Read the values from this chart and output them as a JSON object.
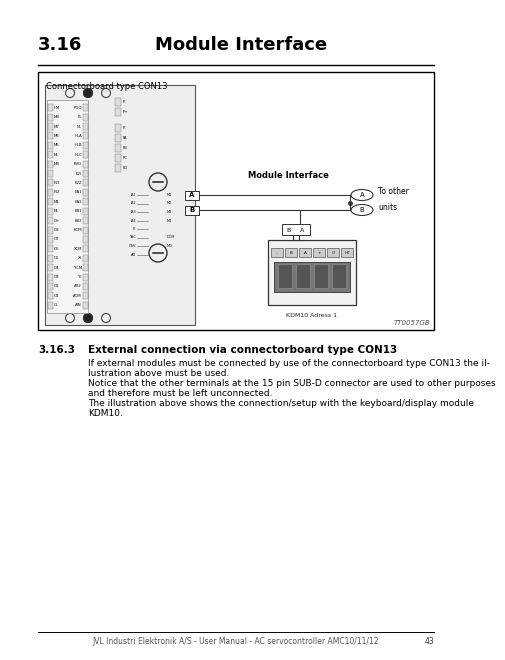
{
  "title_number": "3.16",
  "title_text": "Module Interface",
  "section_number": "3.16.3",
  "section_title": "External connection via connectorboard type CON13",
  "section_body_lines": [
    "If external modules must be connected by use of the connectorboard type CON13 the il-",
    "lustration above must be used.",
    "Notice that the other terminals at the 15 pin SUB-D connector are used to other purposes",
    "and therefore must be left unconnected.",
    "The illustration above shows the connection/setup with the keyboard/display module",
    "KDM10."
  ],
  "footer_text": "JVL Industri Elektronik A/S - User Manual - AC servocontroller AMC10/11/12",
  "footer_page": "43",
  "bg_color": "#ffffff",
  "diagram_label": "Connectorboard type CON13",
  "diagram_ref": "TT0057GB",
  "title_fontsize": 13,
  "section_fontsize": 7.5,
  "body_fontsize": 6.5,
  "footer_fontsize": 5.5
}
